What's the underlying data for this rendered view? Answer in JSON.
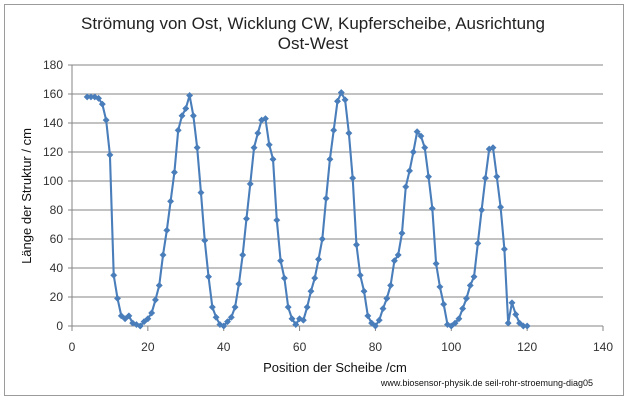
{
  "chart_data": {
    "type": "line",
    "title_lines": [
      "Strömung von Ost, Wicklung CW, Kupferscheibe, Ausrichtung",
      "Ost-West"
    ],
    "xlabel": "Position der Scheibe /cm",
    "ylabel": "Länge der Struktur / cm",
    "credit": "www.biosensor-physik.de seil-rohr-stroemung-diag05",
    "xlim": [
      0,
      140
    ],
    "ylim": [
      0,
      180
    ],
    "x_ticks": [
      0,
      20,
      40,
      60,
      80,
      100,
      120,
      140
    ],
    "y_ticks": [
      0,
      20,
      40,
      60,
      80,
      100,
      120,
      140,
      160,
      180
    ],
    "x_tick_labels": [
      "0",
      "20",
      "40",
      "60",
      "80",
      "100",
      "120",
      "140"
    ],
    "y_tick_labels": [
      "0",
      "20",
      "40",
      "60",
      "80",
      "100",
      "120",
      "140",
      "160",
      "180"
    ],
    "grid": "horizontal",
    "legend": "none",
    "series": [
      {
        "name": "Länge der Struktur",
        "color": "#4a7ebb",
        "marker": "diamond",
        "points": [
          [
            4,
            158
          ],
          [
            5,
            158
          ],
          [
            6,
            158
          ],
          [
            7,
            157
          ],
          [
            8,
            153
          ],
          [
            9,
            142
          ],
          [
            10,
            118
          ],
          [
            11,
            35
          ],
          [
            12,
            19
          ],
          [
            13,
            7
          ],
          [
            14,
            5
          ],
          [
            15,
            7
          ],
          [
            16,
            2
          ],
          [
            17,
            1
          ],
          [
            18,
            0
          ],
          [
            19,
            3
          ],
          [
            20,
            5
          ],
          [
            21,
            9
          ],
          [
            22,
            18
          ],
          [
            23,
            28
          ],
          [
            24,
            49
          ],
          [
            25,
            66
          ],
          [
            26,
            86
          ],
          [
            27,
            106
          ],
          [
            28,
            135
          ],
          [
            29,
            145
          ],
          [
            30,
            150
          ],
          [
            31,
            159
          ],
          [
            32,
            145
          ],
          [
            33,
            123
          ],
          [
            34,
            92
          ],
          [
            35,
            59
          ],
          [
            36,
            34
          ],
          [
            37,
            13
          ],
          [
            38,
            6
          ],
          [
            39,
            1
          ],
          [
            40,
            0
          ],
          [
            41,
            3
          ],
          [
            42,
            6
          ],
          [
            43,
            13
          ],
          [
            44,
            29
          ],
          [
            45,
            49
          ],
          [
            46,
            74
          ],
          [
            47,
            98
          ],
          [
            48,
            123
          ],
          [
            49,
            133
          ],
          [
            50,
            142
          ],
          [
            51,
            143
          ],
          [
            52,
            125
          ],
          [
            53,
            115
          ],
          [
            54,
            73
          ],
          [
            55,
            45
          ],
          [
            56,
            33
          ],
          [
            57,
            13
          ],
          [
            58,
            5
          ],
          [
            59,
            1
          ],
          [
            60,
            5
          ],
          [
            61,
            4
          ],
          [
            62,
            13
          ],
          [
            63,
            24
          ],
          [
            64,
            33
          ],
          [
            65,
            46
          ],
          [
            66,
            60
          ],
          [
            67,
            88
          ],
          [
            68,
            115
          ],
          [
            69,
            135
          ],
          [
            70,
            155
          ],
          [
            71,
            161
          ],
          [
            72,
            156
          ],
          [
            73,
            133
          ],
          [
            74,
            102
          ],
          [
            75,
            56
          ],
          [
            76,
            35
          ],
          [
            77,
            24
          ],
          [
            78,
            7
          ],
          [
            79,
            2
          ],
          [
            80,
            0
          ],
          [
            81,
            4
          ],
          [
            82,
            12
          ],
          [
            83,
            19
          ],
          [
            84,
            28
          ],
          [
            85,
            45
          ],
          [
            86,
            49
          ],
          [
            87,
            64
          ],
          [
            88,
            96
          ],
          [
            89,
            107
          ],
          [
            90,
            120
          ],
          [
            91,
            134
          ],
          [
            92,
            131
          ],
          [
            93,
            123
          ],
          [
            94,
            103
          ],
          [
            95,
            81
          ],
          [
            96,
            43
          ],
          [
            97,
            27
          ],
          [
            98,
            15
          ],
          [
            99,
            1
          ],
          [
            100,
            0
          ],
          [
            101,
            2
          ],
          [
            102,
            5
          ],
          [
            103,
            12
          ],
          [
            104,
            19
          ],
          [
            105,
            28
          ],
          [
            106,
            34
          ],
          [
            107,
            57
          ],
          [
            108,
            80
          ],
          [
            109,
            102
          ],
          [
            110,
            122
          ],
          [
            111,
            123
          ],
          [
            112,
            103
          ],
          [
            113,
            82
          ],
          [
            114,
            53
          ],
          [
            115,
            2
          ],
          [
            116,
            16
          ],
          [
            117,
            8
          ],
          [
            118,
            2
          ],
          [
            119,
            0
          ],
          [
            120,
            0
          ]
        ]
      }
    ]
  }
}
